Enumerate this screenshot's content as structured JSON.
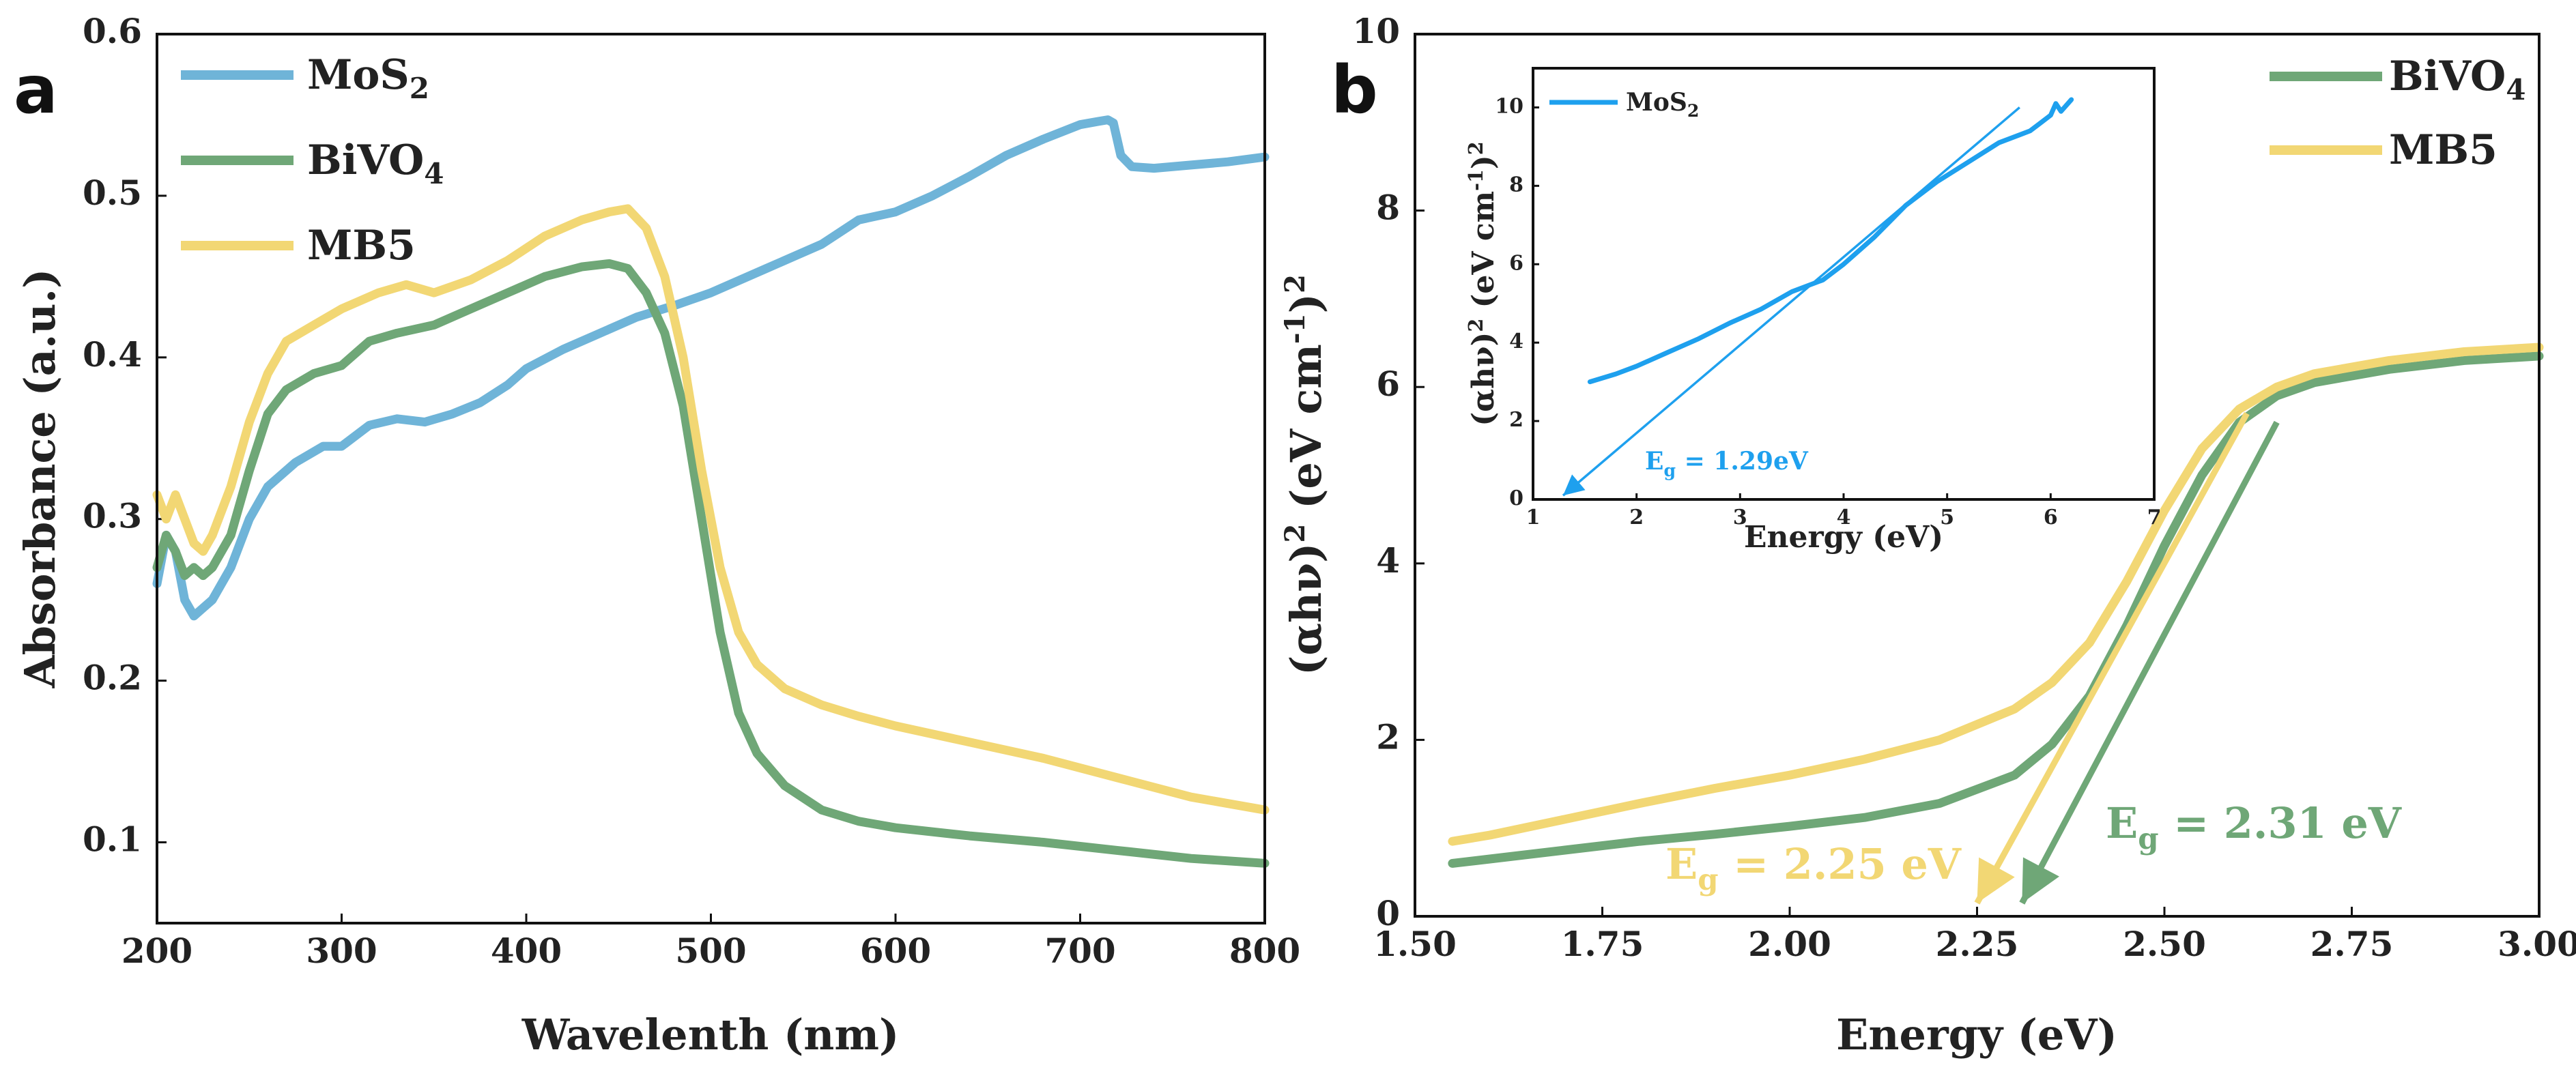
{
  "colors": {
    "mos2": "#6fb4d8",
    "bivo4": "#6fa777",
    "mb5": "#f2d774",
    "inset_line": "#1ea0ee"
  },
  "chart_data": [
    {
      "panel": "a",
      "type": "line",
      "xlabel": "Wavelenth (nm)",
      "ylabel": "Absorbance (a.u.)",
      "xlim": [
        200,
        800
      ],
      "ylim": [
        0.05,
        0.6
      ],
      "xticks": [
        "200",
        "300",
        "400",
        "500",
        "600",
        "700",
        "800"
      ],
      "yticks": [
        "0.1",
        "0.2",
        "0.3",
        "0.4",
        "0.5",
        "0.6"
      ],
      "legend": "top-left",
      "series": [
        {
          "name": "MoS",
          "sub": "2",
          "color_key": "mos2",
          "x": [
            200,
            205,
            210,
            215,
            220,
            225,
            230,
            240,
            250,
            260,
            275,
            290,
            300,
            315,
            330,
            345,
            360,
            375,
            390,
            400,
            420,
            440,
            460,
            480,
            500,
            530,
            560,
            580,
            600,
            620,
            640,
            660,
            680,
            700,
            710,
            715,
            718,
            722,
            728,
            740,
            760,
            780,
            800
          ],
          "y": [
            0.26,
            0.29,
            0.28,
            0.25,
            0.24,
            0.245,
            0.25,
            0.27,
            0.3,
            0.32,
            0.335,
            0.345,
            0.345,
            0.358,
            0.362,
            0.36,
            0.365,
            0.372,
            0.383,
            0.393,
            0.405,
            0.415,
            0.425,
            0.432,
            0.44,
            0.455,
            0.47,
            0.485,
            0.49,
            0.5,
            0.512,
            0.525,
            0.535,
            0.544,
            0.546,
            0.547,
            0.545,
            0.525,
            0.518,
            0.517,
            0.519,
            0.521,
            0.524
          ]
        },
        {
          "name": "BiVO",
          "sub": "4",
          "color_key": "bivo4",
          "x": [
            200,
            205,
            210,
            215,
            220,
            225,
            230,
            240,
            250,
            260,
            270,
            285,
            300,
            315,
            330,
            350,
            370,
            390,
            410,
            430,
            445,
            455,
            465,
            475,
            485,
            495,
            505,
            515,
            525,
            540,
            560,
            580,
            600,
            640,
            680,
            720,
            760,
            800
          ],
          "y": [
            0.27,
            0.29,
            0.28,
            0.265,
            0.27,
            0.265,
            0.27,
            0.29,
            0.33,
            0.365,
            0.38,
            0.39,
            0.395,
            0.41,
            0.415,
            0.42,
            0.43,
            0.44,
            0.45,
            0.456,
            0.458,
            0.455,
            0.44,
            0.415,
            0.37,
            0.3,
            0.23,
            0.18,
            0.155,
            0.135,
            0.12,
            0.113,
            0.109,
            0.104,
            0.1,
            0.095,
            0.09,
            0.087
          ]
        },
        {
          "name": "MB5",
          "sub": "",
          "color_key": "mb5",
          "x": [
            200,
            205,
            210,
            215,
            220,
            225,
            230,
            240,
            250,
            260,
            270,
            285,
            300,
            320,
            335,
            350,
            370,
            390,
            410,
            430,
            445,
            455,
            465,
            475,
            485,
            495,
            505,
            515,
            525,
            540,
            560,
            580,
            600,
            640,
            680,
            720,
            760,
            800
          ],
          "y": [
            0.315,
            0.3,
            0.315,
            0.3,
            0.285,
            0.28,
            0.29,
            0.32,
            0.36,
            0.39,
            0.41,
            0.42,
            0.43,
            0.44,
            0.445,
            0.44,
            0.448,
            0.46,
            0.475,
            0.485,
            0.49,
            0.492,
            0.48,
            0.45,
            0.4,
            0.33,
            0.27,
            0.23,
            0.21,
            0.195,
            0.185,
            0.178,
            0.172,
            0.162,
            0.152,
            0.14,
            0.128,
            0.12
          ]
        }
      ]
    },
    {
      "panel": "b",
      "type": "line",
      "xlabel": "Energy (eV)",
      "ylabel_parts": [
        "(αhν)",
        "2",
        " (eV cm",
        "-1",
        ")",
        "2"
      ],
      "xlim": [
        1.5,
        3.0
      ],
      "ylim": [
        0,
        10
      ],
      "xticks": [
        "1.50",
        "1.75",
        "2.00",
        "2.25",
        "2.50",
        "2.75",
        "3.00"
      ],
      "yticks": [
        "0",
        "2",
        "4",
        "6",
        "8",
        "10"
      ],
      "legend": "top-right",
      "series": [
        {
          "name": "BiVO",
          "sub": "4",
          "color_key": "bivo4",
          "x": [
            1.55,
            1.6,
            1.7,
            1.8,
            1.9,
            2.0,
            2.1,
            2.2,
            2.3,
            2.35,
            2.4,
            2.45,
            2.5,
            2.55,
            2.6,
            2.65,
            2.7,
            2.8,
            2.9,
            3.0
          ],
          "y": [
            0.6,
            0.65,
            0.75,
            0.85,
            0.93,
            1.02,
            1.12,
            1.28,
            1.6,
            1.95,
            2.5,
            3.3,
            4.2,
            5.0,
            5.6,
            5.9,
            6.05,
            6.2,
            6.3,
            6.35
          ]
        },
        {
          "name": "MB5",
          "sub": "",
          "color_key": "mb5",
          "x": [
            1.55,
            1.6,
            1.7,
            1.8,
            1.9,
            2.0,
            2.1,
            2.2,
            2.3,
            2.35,
            2.4,
            2.45,
            2.5,
            2.55,
            2.6,
            2.65,
            2.7,
            2.8,
            2.9,
            3.0
          ],
          "y": [
            0.85,
            0.92,
            1.1,
            1.28,
            1.45,
            1.6,
            1.78,
            2.0,
            2.35,
            2.65,
            3.1,
            3.8,
            4.6,
            5.3,
            5.75,
            6.0,
            6.15,
            6.3,
            6.4,
            6.45
          ]
        }
      ],
      "tangents": [
        {
          "series": "BiVO4",
          "from": [
            2.65,
            5.6
          ],
          "to": [
            2.31,
            0.15
          ],
          "label_main": "E",
          "label_sub": "g",
          "label_rest": " = 2.31 eV"
        },
        {
          "series": "MB5",
          "from": [
            2.61,
            5.7
          ],
          "to": [
            2.25,
            0.15
          ],
          "label_main": "E",
          "label_sub": "g",
          "label_rest": " = 2.25 eV"
        }
      ],
      "inset": {
        "type": "line",
        "xlabel": "Energy (eV)",
        "ylabel_parts": [
          "(αhν)",
          "2",
          " (eV cm",
          "-1",
          ")",
          "2"
        ],
        "xlim": [
          1,
          7
        ],
        "ylim": [
          0,
          11
        ],
        "xticks": [
          "1",
          "2",
          "3",
          "4",
          "5",
          "6",
          "7"
        ],
        "yticks": [
          "0",
          "2",
          "4",
          "6",
          "8",
          "10"
        ],
        "legend": "top-left",
        "series": [
          {
            "name": "MoS",
            "sub": "2",
            "color_key": "inset_line",
            "x": [
              1.55,
              1.8,
              2.0,
              2.3,
              2.6,
              2.9,
              3.2,
              3.5,
              3.8,
              4.0,
              4.3,
              4.6,
              4.9,
              5.2,
              5.5,
              5.7,
              5.8,
              5.9,
              6.0,
              6.05,
              6.1,
              6.2
            ],
            "y": [
              3.0,
              3.2,
              3.4,
              3.75,
              4.1,
              4.5,
              4.85,
              5.3,
              5.6,
              6.0,
              6.7,
              7.5,
              8.1,
              8.6,
              9.1,
              9.3,
              9.4,
              9.6,
              9.8,
              10.1,
              9.9,
              10.2
            ]
          }
        ],
        "tangent": {
          "from": [
            5.7,
            10.0
          ],
          "to": [
            1.29,
            0.1
          ],
          "label_main": "E",
          "label_sub": "g",
          "label_rest": " = 1.29eV"
        }
      }
    }
  ]
}
